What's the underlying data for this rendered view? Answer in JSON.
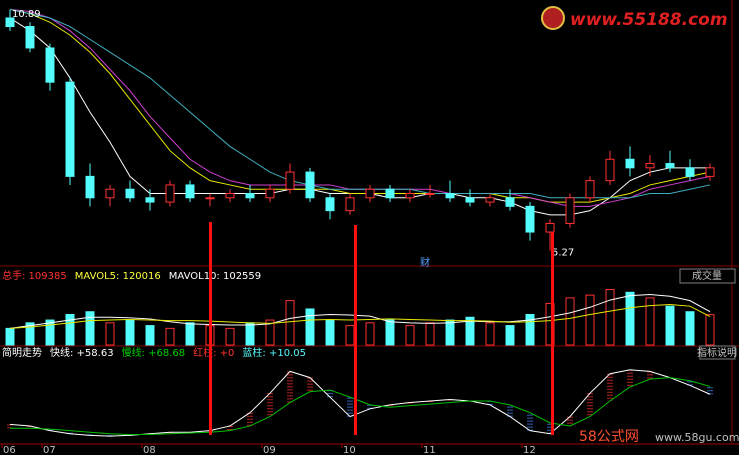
{
  "chart_data": [
    {
      "type": "candlestick",
      "annotations": [
        "10.89",
        "5.27"
      ],
      "marker": "财",
      "up_color": "#ff3232",
      "down_color": "#54fcfc",
      "ylim": [
        5.0,
        11.05
      ],
      "open": [
        10.7,
        10.5,
        10.0,
        9.2,
        7.0,
        6.5,
        6.7,
        6.5,
        6.4,
        6.8,
        6.5,
        6.5,
        6.6,
        6.5,
        6.7,
        7.1,
        6.5,
        6.2,
        6.5,
        6.7,
        6.5,
        6.6,
        6.6,
        6.5,
        6.4,
        6.5,
        6.3,
        5.7,
        5.9,
        6.5,
        6.9,
        7.4,
        7.2,
        7.3,
        7.2,
        7.0
      ],
      "high": [
        10.89,
        10.6,
        10.1,
        9.3,
        7.3,
        6.8,
        6.9,
        6.7,
        6.9,
        6.9,
        6.6,
        6.7,
        6.8,
        6.8,
        7.3,
        7.2,
        6.6,
        6.6,
        6.8,
        6.8,
        6.7,
        6.8,
        6.9,
        6.7,
        6.6,
        6.7,
        6.4,
        6.0,
        6.6,
        7.0,
        7.6,
        7.7,
        7.5,
        7.6,
        7.4,
        7.3
      ],
      "low": [
        10.4,
        9.9,
        9.0,
        6.8,
        6.3,
        6.3,
        6.4,
        6.2,
        6.3,
        6.4,
        6.3,
        6.4,
        6.4,
        6.4,
        6.6,
        6.4,
        6.0,
        6.1,
        6.4,
        6.4,
        6.4,
        6.5,
        6.4,
        6.3,
        6.3,
        6.2,
        5.5,
        5.27,
        5.8,
        6.4,
        6.8,
        7.0,
        7.0,
        7.1,
        6.9,
        6.9
      ],
      "close": [
        10.5,
        10.0,
        9.2,
        7.0,
        6.5,
        6.7,
        6.5,
        6.4,
        6.8,
        6.5,
        6.5,
        6.6,
        6.5,
        6.7,
        7.1,
        6.5,
        6.2,
        6.5,
        6.7,
        6.5,
        6.6,
        6.6,
        6.5,
        6.4,
        6.5,
        6.3,
        5.7,
        5.9,
        6.5,
        6.9,
        7.4,
        7.2,
        7.3,
        7.2,
        7.0,
        7.2
      ],
      "lines": [
        {
          "color": "#ffffff",
          "values": [
            10.7,
            10.4,
            10.0,
            9.3,
            8.5,
            7.8,
            7.0,
            6.6,
            6.6,
            6.6,
            6.6,
            6.6,
            6.6,
            6.6,
            6.7,
            6.7,
            6.6,
            6.6,
            6.6,
            6.5,
            6.5,
            6.6,
            6.6,
            6.5,
            6.5,
            6.4,
            6.2,
            6.1,
            6.1,
            6.2,
            6.5,
            6.9,
            7.1,
            7.2,
            7.2,
            7.2
          ]
        },
        {
          "color": "#e8e800",
          "values": [
            10.9,
            10.8,
            10.6,
            10.3,
            9.9,
            9.4,
            8.8,
            8.2,
            7.6,
            7.2,
            6.9,
            6.8,
            6.7,
            6.7,
            6.7,
            6.7,
            6.7,
            6.6,
            6.6,
            6.6,
            6.6,
            6.6,
            6.6,
            6.6,
            6.6,
            6.5,
            6.5,
            6.4,
            6.4,
            6.4,
            6.5,
            6.6,
            6.8,
            6.9,
            7.0,
            7.1
          ]
        },
        {
          "color": "#d040d0",
          "values": [
            10.9,
            10.85,
            10.7,
            10.4,
            10.0,
            9.5,
            9.0,
            8.4,
            7.9,
            7.4,
            7.1,
            6.9,
            6.8,
            6.8,
            6.8,
            6.8,
            6.8,
            6.7,
            6.7,
            6.7,
            6.7,
            6.7,
            6.6,
            6.6,
            6.6,
            6.6,
            6.5,
            6.4,
            6.3,
            6.3,
            6.4,
            6.5,
            6.7,
            6.8,
            6.9,
            7.0
          ]
        },
        {
          "color": "#40b0c0",
          "values": [
            10.9,
            10.8,
            10.7,
            10.5,
            10.2,
            9.9,
            9.6,
            9.3,
            8.9,
            8.5,
            8.1,
            7.7,
            7.4,
            7.1,
            6.9,
            6.8,
            6.7,
            6.7,
            6.7,
            6.7,
            6.7,
            6.6,
            6.6,
            6.6,
            6.6,
            6.6,
            6.6,
            6.5,
            6.5,
            6.5,
            6.5,
            6.5,
            6.6,
            6.6,
            6.7,
            6.8
          ]
        }
      ]
    },
    {
      "type": "bar",
      "button": "成交量",
      "ylim": [
        0,
        220000
      ],
      "header": [
        {
          "text": "总手: 109385",
          "color": "#ff3232"
        },
        {
          "text": "MAVOL5: 120016",
          "color": "#ffff40"
        },
        {
          "text": "MAVOL10: 102559",
          "color": "#ffffff"
        }
      ],
      "values": [
        60000,
        80000,
        90000,
        110000,
        120000,
        80000,
        90000,
        70000,
        60000,
        80000,
        70000,
        60000,
        80000,
        90000,
        160000,
        130000,
        90000,
        70000,
        80000,
        90000,
        70000,
        80000,
        90000,
        100000,
        80000,
        70000,
        110000,
        150000,
        170000,
        180000,
        200000,
        190000,
        170000,
        140000,
        120000,
        109385
      ],
      "lines": [
        {
          "color": "#ffffff",
          "values": [
            60000,
            70000,
            80000,
            90000,
            100000,
            100000,
            98000,
            94000,
            84000,
            76000,
            74000,
            72000,
            72000,
            76000,
            96000,
            106000,
            110000,
            108000,
            104000,
            84000,
            80000,
            78000,
            80000,
            86000,
            84000,
            84000,
            90000,
            102000,
            116000,
            136000,
            162000,
            178000,
            182000,
            176000,
            160000,
            120016
          ]
        },
        {
          "color": "#e8e800",
          "values": [
            60000,
            65000,
            72000,
            80000,
            88000,
            90000,
            92000,
            90000,
            88000,
            88000,
            86000,
            83000,
            80000,
            78000,
            84000,
            90000,
            92000,
            90000,
            92000,
            94000,
            92000,
            90000,
            88000,
            88000,
            86000,
            82000,
            84000,
            88000,
            96000,
            110000,
            122000,
            134000,
            142000,
            146000,
            140000,
            102559
          ]
        }
      ]
    },
    {
      "type": "line",
      "button": "指标说明",
      "ylim": [
        0,
        100
      ],
      "up_color": "#ff3232",
      "down_color": "#4a8cff",
      "header": [
        {
          "text": "简明走势",
          "color": "#ffffff"
        },
        {
          "text": "快线: +58.63",
          "color": "#ffffff"
        },
        {
          "text": "慢线: +68.68",
          "color": "#00d000"
        },
        {
          "text": "红柱: +0",
          "color": "#ff3232"
        },
        {
          "text": "蓝柱: +10.05",
          "color": "#54fcfc"
        }
      ],
      "categories": [
        "06",
        null,
        "07",
        null,
        null,
        null,
        null,
        "08",
        null,
        null,
        null,
        null,
        null,
        "09",
        null,
        null,
        null,
        "10",
        null,
        null,
        null,
        "11",
        null,
        null,
        null,
        null,
        "12",
        null,
        null,
        null,
        null,
        null,
        null,
        null,
        null,
        null
      ],
      "lines": [
        {
          "color": "#ffffff",
          "values": [
            20,
            18,
            12,
            8,
            6,
            5,
            6,
            8,
            10,
            10,
            12,
            18,
            35,
            60,
            88,
            80,
            55,
            30,
            40,
            45,
            48,
            50,
            52,
            50,
            45,
            30,
            12,
            8,
            30,
            60,
            85,
            90,
            88,
            80,
            70,
            58.63
          ]
        },
        {
          "color": "#00c000",
          "values": [
            15,
            15,
            14,
            12,
            10,
            8,
            7,
            7,
            8,
            9,
            10,
            12,
            18,
            30,
            48,
            62,
            64,
            55,
            45,
            42,
            44,
            46,
            48,
            50,
            50,
            45,
            35,
            22,
            18,
            30,
            50,
            68,
            78,
            80,
            76,
            68.68
          ]
        }
      ]
    }
  ],
  "watermark": {
    "top": "www.55188.com",
    "bottom_cn": "58公式网",
    "bottom_url": "www.58gu.com"
  }
}
